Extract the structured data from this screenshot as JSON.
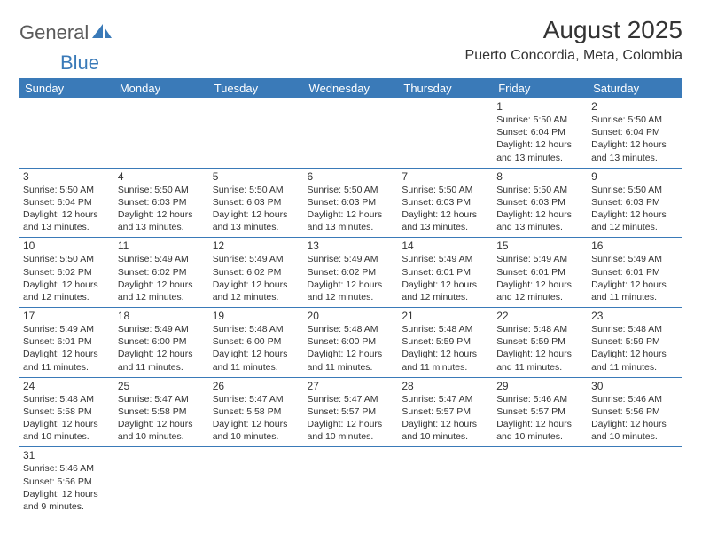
{
  "logo": {
    "part1": "General",
    "part2": "Blue"
  },
  "title": "August 2025",
  "location": "Puerto Concordia, Meta, Colombia",
  "colors": {
    "brand": "#3a7ab8",
    "text": "#333333",
    "logo_gray": "#5a5a5a"
  },
  "dayheaders": [
    "Sunday",
    "Monday",
    "Tuesday",
    "Wednesday",
    "Thursday",
    "Friday",
    "Saturday"
  ],
  "weeks": [
    [
      null,
      null,
      null,
      null,
      null,
      {
        "n": "1",
        "sr": "Sunrise: 5:50 AM",
        "ss": "Sunset: 6:04 PM",
        "d1": "Daylight: 12 hours",
        "d2": "and 13 minutes."
      },
      {
        "n": "2",
        "sr": "Sunrise: 5:50 AM",
        "ss": "Sunset: 6:04 PM",
        "d1": "Daylight: 12 hours",
        "d2": "and 13 minutes."
      }
    ],
    [
      {
        "n": "3",
        "sr": "Sunrise: 5:50 AM",
        "ss": "Sunset: 6:04 PM",
        "d1": "Daylight: 12 hours",
        "d2": "and 13 minutes."
      },
      {
        "n": "4",
        "sr": "Sunrise: 5:50 AM",
        "ss": "Sunset: 6:03 PM",
        "d1": "Daylight: 12 hours",
        "d2": "and 13 minutes."
      },
      {
        "n": "5",
        "sr": "Sunrise: 5:50 AM",
        "ss": "Sunset: 6:03 PM",
        "d1": "Daylight: 12 hours",
        "d2": "and 13 minutes."
      },
      {
        "n": "6",
        "sr": "Sunrise: 5:50 AM",
        "ss": "Sunset: 6:03 PM",
        "d1": "Daylight: 12 hours",
        "d2": "and 13 minutes."
      },
      {
        "n": "7",
        "sr": "Sunrise: 5:50 AM",
        "ss": "Sunset: 6:03 PM",
        "d1": "Daylight: 12 hours",
        "d2": "and 13 minutes."
      },
      {
        "n": "8",
        "sr": "Sunrise: 5:50 AM",
        "ss": "Sunset: 6:03 PM",
        "d1": "Daylight: 12 hours",
        "d2": "and 13 minutes."
      },
      {
        "n": "9",
        "sr": "Sunrise: 5:50 AM",
        "ss": "Sunset: 6:03 PM",
        "d1": "Daylight: 12 hours",
        "d2": "and 12 minutes."
      }
    ],
    [
      {
        "n": "10",
        "sr": "Sunrise: 5:50 AM",
        "ss": "Sunset: 6:02 PM",
        "d1": "Daylight: 12 hours",
        "d2": "and 12 minutes."
      },
      {
        "n": "11",
        "sr": "Sunrise: 5:49 AM",
        "ss": "Sunset: 6:02 PM",
        "d1": "Daylight: 12 hours",
        "d2": "and 12 minutes."
      },
      {
        "n": "12",
        "sr": "Sunrise: 5:49 AM",
        "ss": "Sunset: 6:02 PM",
        "d1": "Daylight: 12 hours",
        "d2": "and 12 minutes."
      },
      {
        "n": "13",
        "sr": "Sunrise: 5:49 AM",
        "ss": "Sunset: 6:02 PM",
        "d1": "Daylight: 12 hours",
        "d2": "and 12 minutes."
      },
      {
        "n": "14",
        "sr": "Sunrise: 5:49 AM",
        "ss": "Sunset: 6:01 PM",
        "d1": "Daylight: 12 hours",
        "d2": "and 12 minutes."
      },
      {
        "n": "15",
        "sr": "Sunrise: 5:49 AM",
        "ss": "Sunset: 6:01 PM",
        "d1": "Daylight: 12 hours",
        "d2": "and 12 minutes."
      },
      {
        "n": "16",
        "sr": "Sunrise: 5:49 AM",
        "ss": "Sunset: 6:01 PM",
        "d1": "Daylight: 12 hours",
        "d2": "and 11 minutes."
      }
    ],
    [
      {
        "n": "17",
        "sr": "Sunrise: 5:49 AM",
        "ss": "Sunset: 6:01 PM",
        "d1": "Daylight: 12 hours",
        "d2": "and 11 minutes."
      },
      {
        "n": "18",
        "sr": "Sunrise: 5:49 AM",
        "ss": "Sunset: 6:00 PM",
        "d1": "Daylight: 12 hours",
        "d2": "and 11 minutes."
      },
      {
        "n": "19",
        "sr": "Sunrise: 5:48 AM",
        "ss": "Sunset: 6:00 PM",
        "d1": "Daylight: 12 hours",
        "d2": "and 11 minutes."
      },
      {
        "n": "20",
        "sr": "Sunrise: 5:48 AM",
        "ss": "Sunset: 6:00 PM",
        "d1": "Daylight: 12 hours",
        "d2": "and 11 minutes."
      },
      {
        "n": "21",
        "sr": "Sunrise: 5:48 AM",
        "ss": "Sunset: 5:59 PM",
        "d1": "Daylight: 12 hours",
        "d2": "and 11 minutes."
      },
      {
        "n": "22",
        "sr": "Sunrise: 5:48 AM",
        "ss": "Sunset: 5:59 PM",
        "d1": "Daylight: 12 hours",
        "d2": "and 11 minutes."
      },
      {
        "n": "23",
        "sr": "Sunrise: 5:48 AM",
        "ss": "Sunset: 5:59 PM",
        "d1": "Daylight: 12 hours",
        "d2": "and 11 minutes."
      }
    ],
    [
      {
        "n": "24",
        "sr": "Sunrise: 5:48 AM",
        "ss": "Sunset: 5:58 PM",
        "d1": "Daylight: 12 hours",
        "d2": "and 10 minutes."
      },
      {
        "n": "25",
        "sr": "Sunrise: 5:47 AM",
        "ss": "Sunset: 5:58 PM",
        "d1": "Daylight: 12 hours",
        "d2": "and 10 minutes."
      },
      {
        "n": "26",
        "sr": "Sunrise: 5:47 AM",
        "ss": "Sunset: 5:58 PM",
        "d1": "Daylight: 12 hours",
        "d2": "and 10 minutes."
      },
      {
        "n": "27",
        "sr": "Sunrise: 5:47 AM",
        "ss": "Sunset: 5:57 PM",
        "d1": "Daylight: 12 hours",
        "d2": "and 10 minutes."
      },
      {
        "n": "28",
        "sr": "Sunrise: 5:47 AM",
        "ss": "Sunset: 5:57 PM",
        "d1": "Daylight: 12 hours",
        "d2": "and 10 minutes."
      },
      {
        "n": "29",
        "sr": "Sunrise: 5:46 AM",
        "ss": "Sunset: 5:57 PM",
        "d1": "Daylight: 12 hours",
        "d2": "and 10 minutes."
      },
      {
        "n": "30",
        "sr": "Sunrise: 5:46 AM",
        "ss": "Sunset: 5:56 PM",
        "d1": "Daylight: 12 hours",
        "d2": "and 10 minutes."
      }
    ],
    [
      {
        "n": "31",
        "sr": "Sunrise: 5:46 AM",
        "ss": "Sunset: 5:56 PM",
        "d1": "Daylight: 12 hours",
        "d2": "and 9 minutes."
      },
      null,
      null,
      null,
      null,
      null,
      null
    ]
  ]
}
